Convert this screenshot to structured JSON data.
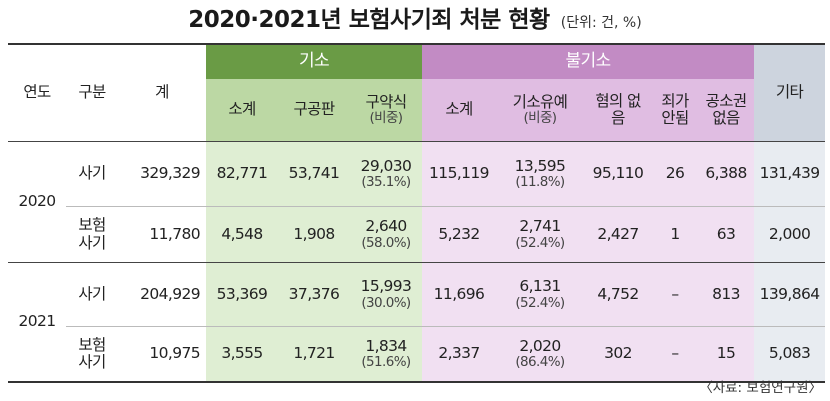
{
  "title": {
    "main": "2020·2021년 보험사기죄 처분 현황",
    "unit": "(단위: 건, %)"
  },
  "header": {
    "year": "연도",
    "category": "구분",
    "total": "계",
    "group_indict": "기소",
    "group_nonindict": "불기소",
    "other": "기타",
    "indict_cols": [
      {
        "label": "소계",
        "sub": ""
      },
      {
        "label": "구공판",
        "sub": ""
      },
      {
        "label": "구약식",
        "sub": "(비중)"
      }
    ],
    "nonindict_cols": [
      {
        "label": "소계",
        "sub": ""
      },
      {
        "label": "기소유예",
        "sub": "(비중)"
      },
      {
        "label": "혐의 없음",
        "sub": ""
      },
      {
        "label": "죄가 안됨",
        "sub": ""
      },
      {
        "label": "공소권 없음",
        "sub": ""
      }
    ]
  },
  "rows": [
    {
      "year": "2020",
      "category": "사기",
      "total": "329,329",
      "i_sub": "82,771",
      "i_trial": "53,741",
      "i_summary": "29,030",
      "i_summary_pct": "(35.1%)",
      "n_sub": "115,119",
      "n_suspend": "13,595",
      "n_suspend_pct": "(11.8%)",
      "n_noevidence": "95,110",
      "n_nocrime": "26",
      "n_noright": "6,388",
      "other": "131,439"
    },
    {
      "category": "보험 사기",
      "total": "11,780",
      "i_sub": "4,548",
      "i_trial": "1,908",
      "i_summary": "2,640",
      "i_summary_pct": "(58.0%)",
      "n_sub": "5,232",
      "n_suspend": "2,741",
      "n_suspend_pct": "(52.4%)",
      "n_noevidence": "2,427",
      "n_nocrime": "1",
      "n_noright": "63",
      "other": "2,000"
    },
    {
      "year": "2021",
      "category": "사기",
      "total": "204,929",
      "i_sub": "53,369",
      "i_trial": "37,376",
      "i_summary": "15,993",
      "i_summary_pct": "(30.0%)",
      "n_sub": "11,696",
      "n_suspend": "6,131",
      "n_suspend_pct": "(52.4%)",
      "n_noevidence": "4,752",
      "n_nocrime": "–",
      "n_noright": "813",
      "other": "139,864"
    },
    {
      "category": "보험 사기",
      "total": "10,975",
      "i_sub": "3,555",
      "i_trial": "1,721",
      "i_summary": "1,834",
      "i_summary_pct": "(51.6%)",
      "n_sub": "2,337",
      "n_suspend": "2,020",
      "n_suspend_pct": "(86.4%)",
      "n_noevidence": "302",
      "n_nocrime": "–",
      "n_noright": "15",
      "other": "5,083"
    }
  ],
  "source": "〈자료: 보험연구원〉"
}
